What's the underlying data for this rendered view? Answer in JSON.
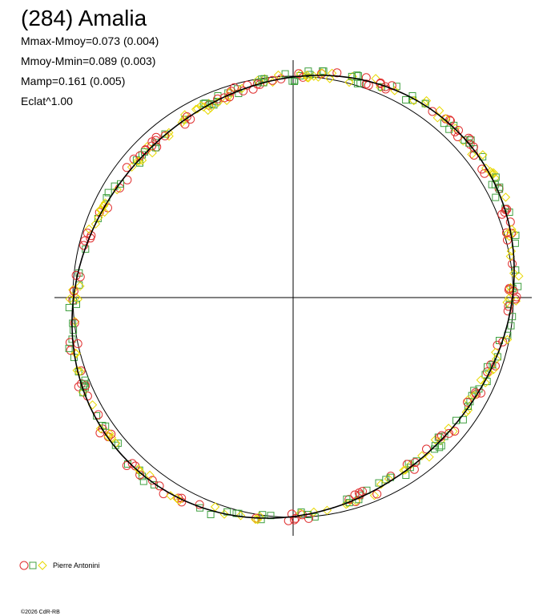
{
  "title": "(284) Amalia",
  "stats": [
    "Mmax-Mmoy=0.073 (0.004)",
    "Mmoy-Mmin=0.089 (0.003)",
    "Mamp=0.161 (0.005)",
    "Eclat^1.00"
  ],
  "legend": {
    "observer": "Pierre Antonini"
  },
  "footer": "©2026 CdR-RB"
}
